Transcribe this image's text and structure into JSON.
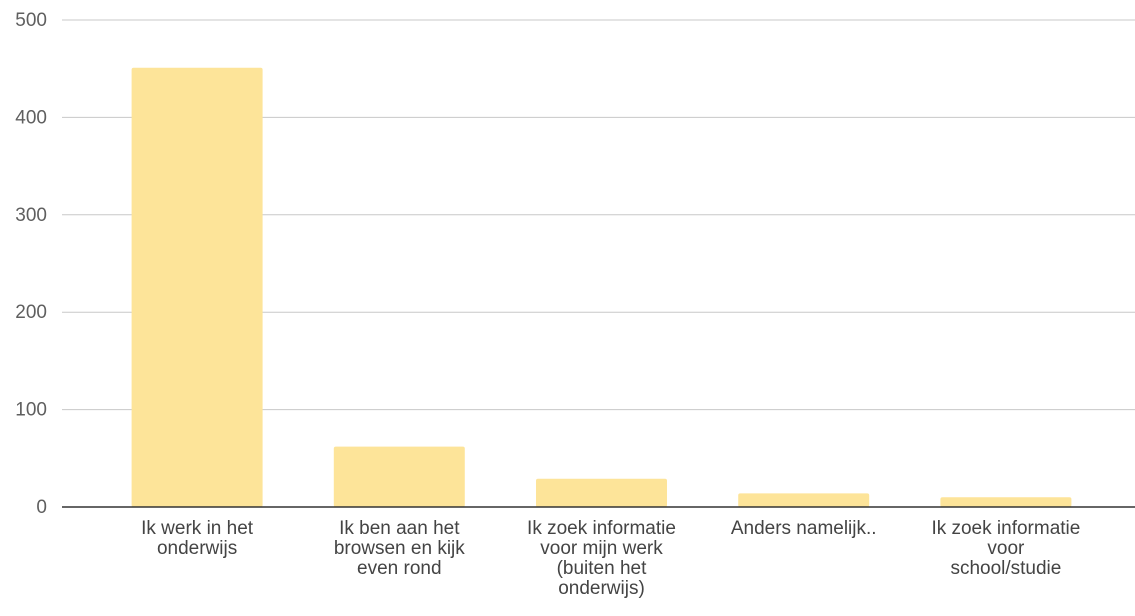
{
  "chart_data": {
    "type": "bar",
    "title": "",
    "xlabel": "",
    "ylabel": "",
    "ylim": [
      0,
      500
    ],
    "yticks": [
      0,
      100,
      200,
      300,
      400,
      500
    ],
    "grid": true,
    "legend": "none",
    "categories": [
      [
        "Ik werk in het",
        "onderwijs"
      ],
      [
        "Ik ben aan het",
        "browsen en kijk",
        "even rond"
      ],
      [
        "Ik zoek informatie",
        "voor mijn werk",
        "(buiten het",
        "onderwijs)"
      ],
      [
        "Anders namelijk.."
      ],
      [
        "Ik zoek informatie",
        "voor",
        "school/studie"
      ]
    ],
    "values": [
      451,
      62,
      29,
      14,
      10
    ],
    "colors": {
      "bar": "#fde499",
      "grid": "#c8c8c8",
      "axis": "#333333",
      "tick_text": "#5f5f5f",
      "category_text": "#444444"
    }
  }
}
